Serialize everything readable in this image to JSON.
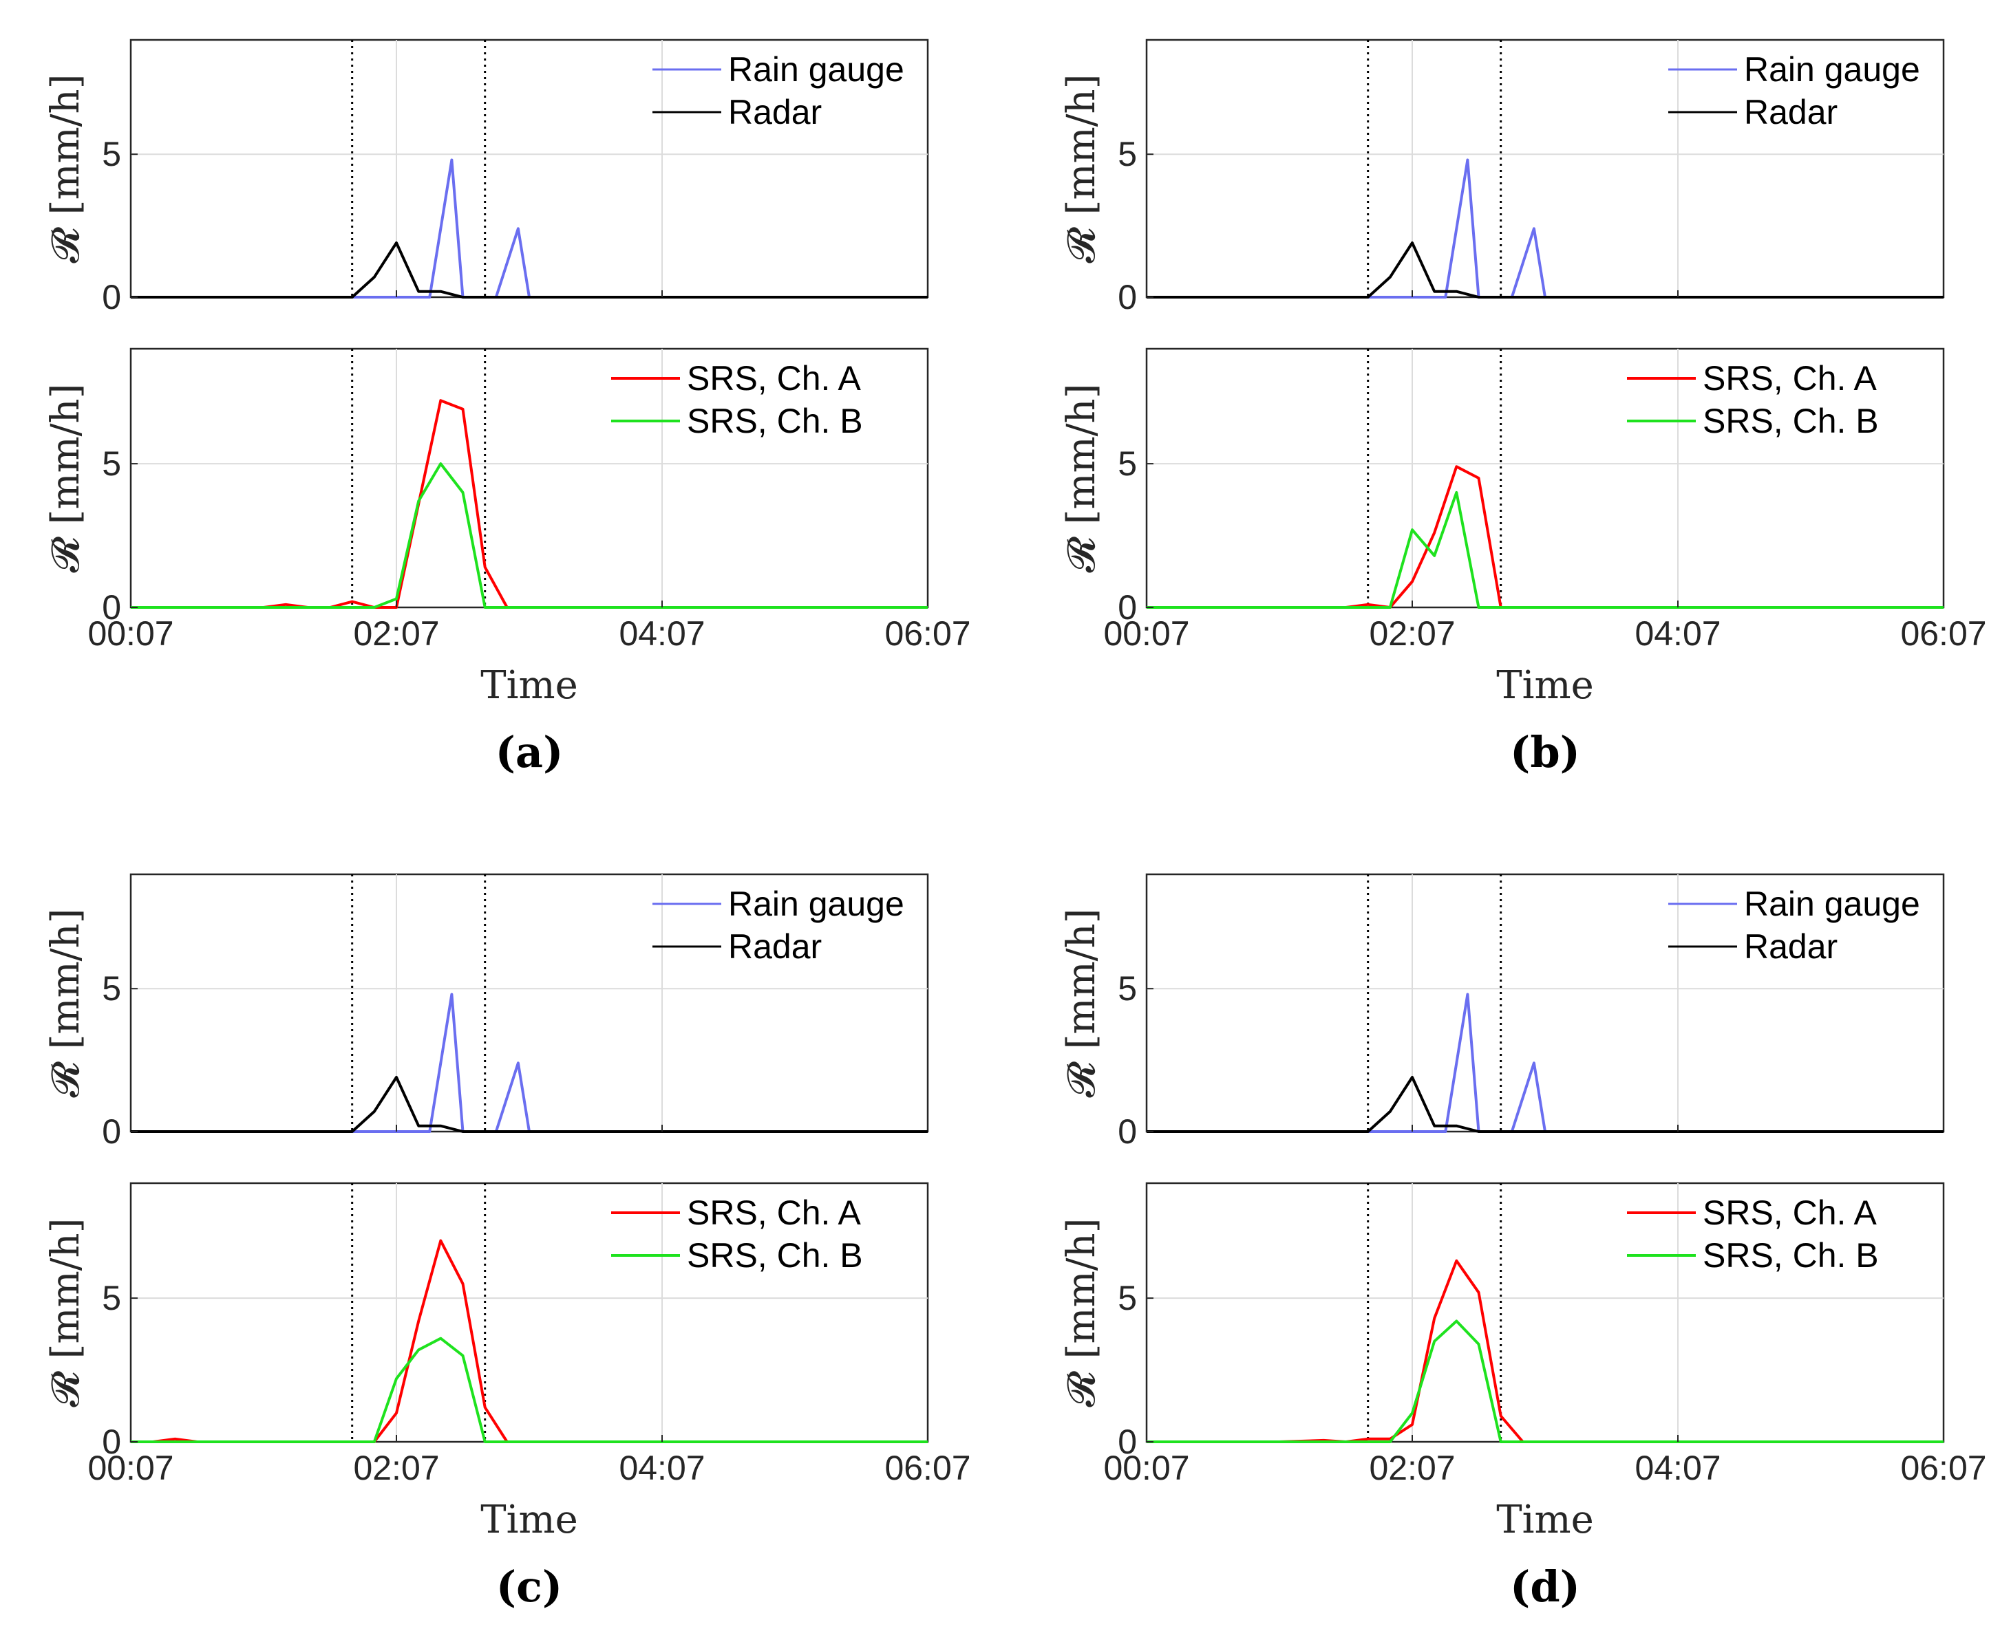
{
  "colors": {
    "rain_gauge": "#6a6ef0",
    "radar": "#000000",
    "srs_a": "#ff0000",
    "srs_b": "#1ee21e"
  },
  "chart_data": [
    {
      "panel": "(a)",
      "type": "line",
      "x_ticks": [
        "00:07",
        "02:07",
        "04:07",
        "06:07"
      ],
      "xlabel": "Time",
      "ylabel": "𝓡 [mm/h]",
      "ylim": [
        0,
        9
      ],
      "y_ticks": [
        "0",
        "5"
      ],
      "event_markers_min": [
        100,
        160
      ],
      "subplots": [
        {
          "legend": [
            "Rain gauge",
            "Radar"
          ],
          "series": [
            {
              "name": "Rain gauge",
              "color_key": "rain_gauge",
              "x": [
                0,
                100,
                125,
                135,
                145,
                150,
                155,
                165,
                175,
                180,
                185,
                360
              ],
              "y": [
                0,
                0,
                0,
                0,
                4.8,
                0,
                0,
                0,
                2.4,
                0,
                0,
                0
              ]
            },
            {
              "name": "Radar",
              "color_key": "radar",
              "x": [
                0,
                100,
                110,
                120,
                130,
                140,
                150,
                160,
                360
              ],
              "y": [
                0,
                0,
                0.7,
                1.9,
                0.2,
                0.2,
                0,
                0,
                0
              ]
            }
          ]
        },
        {
          "legend": [
            "SRS, Ch. A",
            "SRS, Ch. B"
          ],
          "series": [
            {
              "name": "SRS, Ch. A",
              "color_key": "srs_a",
              "x": [
                0,
                60,
                70,
                80,
                90,
                100,
                110,
                120,
                130,
                140,
                150,
                160,
                170,
                360
              ],
              "y": [
                0,
                0,
                0.1,
                0,
                0,
                0.2,
                0,
                0,
                3.6,
                7.2,
                6.9,
                1.4,
                0,
                0
              ]
            },
            {
              "name": "SRS, Ch. B",
              "color_key": "srs_b",
              "x": [
                0,
                110,
                120,
                130,
                140,
                150,
                160,
                360
              ],
              "y": [
                0,
                0,
                0.3,
                3.7,
                5.0,
                4.0,
                0,
                0
              ]
            }
          ]
        }
      ]
    },
    {
      "panel": "(b)",
      "type": "line",
      "x_ticks": [
        "00:07",
        "02:07",
        "04:07",
        "06:07"
      ],
      "xlabel": "Time",
      "ylabel": "𝓡 [mm/h]",
      "ylim": [
        0,
        9
      ],
      "y_ticks": [
        "0",
        "5"
      ],
      "event_markers_min": [
        100,
        160
      ],
      "subplots": [
        {
          "legend": [
            "Rain gauge",
            "Radar"
          ],
          "series": [
            {
              "name": "Rain gauge",
              "color_key": "rain_gauge",
              "x": [
                0,
                100,
                125,
                135,
                145,
                150,
                155,
                165,
                175,
                180,
                185,
                360
              ],
              "y": [
                0,
                0,
                0,
                0,
                4.8,
                0,
                0,
                0,
                2.4,
                0,
                0,
                0
              ]
            },
            {
              "name": "Radar",
              "color_key": "radar",
              "x": [
                0,
                100,
                110,
                120,
                130,
                140,
                150,
                160,
                360
              ],
              "y": [
                0,
                0,
                0.7,
                1.9,
                0.2,
                0.2,
                0,
                0,
                0
              ]
            }
          ]
        },
        {
          "legend": [
            "SRS, Ch. A",
            "SRS, Ch. B"
          ],
          "series": [
            {
              "name": "SRS, Ch. A",
              "color_key": "srs_a",
              "x": [
                0,
                90,
                100,
                110,
                120,
                130,
                140,
                150,
                160,
                360
              ],
              "y": [
                0,
                0,
                0.1,
                0,
                0.9,
                2.6,
                4.9,
                4.5,
                0,
                0
              ]
            },
            {
              "name": "SRS, Ch. B",
              "color_key": "srs_b",
              "x": [
                0,
                110,
                120,
                130,
                140,
                150,
                160,
                360
              ],
              "y": [
                0,
                0,
                2.7,
                1.8,
                4.0,
                0,
                0,
                0
              ]
            }
          ]
        }
      ]
    },
    {
      "panel": "(c)",
      "type": "line",
      "x_ticks": [
        "00:07",
        "02:07",
        "04:07",
        "06:07"
      ],
      "xlabel": "Time",
      "ylabel": "𝓡 [mm/h]",
      "ylim": [
        0,
        9
      ],
      "y_ticks": [
        "0",
        "5"
      ],
      "event_markers_min": [
        100,
        160
      ],
      "subplots": [
        {
          "legend": [
            "Rain gauge",
            "Radar"
          ],
          "series": [
            {
              "name": "Rain gauge",
              "color_key": "rain_gauge",
              "x": [
                0,
                100,
                125,
                135,
                145,
                150,
                155,
                165,
                175,
                180,
                185,
                360
              ],
              "y": [
                0,
                0,
                0,
                0,
                4.8,
                0,
                0,
                0,
                2.4,
                0,
                0,
                0
              ]
            },
            {
              "name": "Radar",
              "color_key": "radar",
              "x": [
                0,
                100,
                110,
                120,
                130,
                140,
                150,
                160,
                360
              ],
              "y": [
                0,
                0,
                0.7,
                1.9,
                0.2,
                0.2,
                0,
                0,
                0
              ]
            }
          ]
        },
        {
          "legend": [
            "SRS, Ch. A",
            "SRS, Ch. B"
          ],
          "series": [
            {
              "name": "SRS, Ch. A",
              "color_key": "srs_a",
              "x": [
                0,
                10,
                20,
                30,
                110,
                120,
                130,
                140,
                150,
                160,
                170,
                360
              ],
              "y": [
                0,
                0,
                0.1,
                0,
                0,
                1.0,
                4.2,
                7.0,
                5.5,
                1.2,
                0,
                0
              ]
            },
            {
              "name": "SRS, Ch. B",
              "color_key": "srs_b",
              "x": [
                0,
                110,
                120,
                130,
                140,
                150,
                160,
                360
              ],
              "y": [
                0,
                0,
                2.2,
                3.2,
                3.6,
                3.0,
                0,
                0
              ]
            }
          ]
        }
      ]
    },
    {
      "panel": "(d)",
      "type": "line",
      "x_ticks": [
        "00:07",
        "02:07",
        "04:07",
        "06:07"
      ],
      "xlabel": "Time",
      "ylabel": "𝓡 [mm/h]",
      "ylim": [
        0,
        9
      ],
      "y_ticks": [
        "0",
        "5"
      ],
      "event_markers_min": [
        100,
        160
      ],
      "subplots": [
        {
          "legend": [
            "Rain gauge",
            "Radar"
          ],
          "series": [
            {
              "name": "Rain gauge",
              "color_key": "rain_gauge",
              "x": [
                0,
                100,
                125,
                135,
                145,
                150,
                155,
                165,
                175,
                180,
                185,
                360
              ],
              "y": [
                0,
                0,
                0,
                0,
                4.8,
                0,
                0,
                0,
                2.4,
                0,
                0,
                0
              ]
            },
            {
              "name": "Radar",
              "color_key": "radar",
              "x": [
                0,
                100,
                110,
                120,
                130,
                140,
                150,
                160,
                360
              ],
              "y": [
                0,
                0,
                0.7,
                1.9,
                0.2,
                0.2,
                0,
                0,
                0
              ]
            }
          ]
        },
        {
          "legend": [
            "SRS, Ch. A",
            "SRS, Ch. B"
          ],
          "series": [
            {
              "name": "SRS, Ch. A",
              "color_key": "srs_a",
              "x": [
                0,
                60,
                80,
                90,
                100,
                110,
                120,
                130,
                140,
                150,
                160,
                170,
                360
              ],
              "y": [
                0,
                0,
                0.05,
                0,
                0.1,
                0.1,
                0.6,
                4.3,
                6.3,
                5.2,
                0.9,
                0,
                0
              ]
            },
            {
              "name": "SRS, Ch. B",
              "color_key": "srs_b",
              "x": [
                0,
                110,
                120,
                130,
                140,
                150,
                160,
                360
              ],
              "y": [
                0,
                0,
                1.0,
                3.5,
                4.2,
                3.4,
                0,
                0
              ]
            }
          ]
        }
      ]
    }
  ]
}
